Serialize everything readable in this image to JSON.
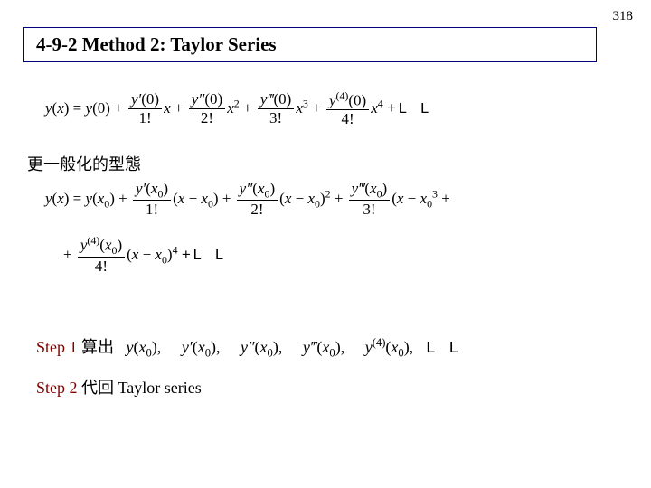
{
  "page_number": "318",
  "title": "4-9-2  Method 2: Taylor Series",
  "eq1": {
    "lhs_y": "y",
    "lhs_x": "x",
    "t0_y": "y",
    "t0_arg": "0",
    "terms": [
      {
        "deriv": "y′",
        "arg": "0",
        "fact": "1!",
        "xpow": "x"
      },
      {
        "deriv": "y″",
        "arg": "0",
        "fact": "2!",
        "xpow": "x",
        "exp": "2"
      },
      {
        "deriv": "y‴",
        "arg": "0",
        "fact": "3!",
        "xpow": "x",
        "exp": "3"
      },
      {
        "deriv": "y",
        "ord": "(4)",
        "arg": "0",
        "fact": "4!",
        "xpow": "x",
        "exp": "4"
      }
    ],
    "tail": "+L L"
  },
  "cjk_heading": "更一般化的型態",
  "eq2": {
    "lhs_y": "y",
    "lhs_x": "x",
    "t0_y": "y",
    "t0_argx": "x",
    "t0_sub": "0",
    "terms": [
      {
        "deriv": "y′",
        "argx": "x",
        "sub": "0",
        "fact": "1!",
        "bx": "x",
        "bsub": "0"
      },
      {
        "deriv": "y″",
        "argx": "x",
        "sub": "0",
        "fact": "2!",
        "bx": "x",
        "bsub": "0",
        "exp": "2"
      },
      {
        "deriv": "y‴",
        "argx": "x",
        "sub": "0",
        "fact": "3!",
        "bx": "x",
        "bsub": "0",
        "exp": "3"
      }
    ]
  },
  "eq3": {
    "term": {
      "deriv": "y",
      "ord": "(4)",
      "argx": "x",
      "sub": "0",
      "fact": "4!",
      "bx": "x",
      "bsub": "0",
      "exp": "4"
    },
    "tail": "+L L"
  },
  "step1": {
    "label": "Step 1",
    "cjk": "算出",
    "items": [
      {
        "fn": "y",
        "argx": "x",
        "sub": "0"
      },
      {
        "fn": "y′",
        "argx": "x",
        "sub": "0"
      },
      {
        "fn": "y″",
        "argx": "x",
        "sub": "0"
      },
      {
        "fn": "y‴",
        "argx": "x",
        "sub": "0"
      },
      {
        "fn": "y",
        "ord": "(4)",
        "argx": "x",
        "sub": "0"
      }
    ],
    "tail": "L L"
  },
  "step2": {
    "label": "Step 2",
    "cjk": "代回",
    "rest": "Taylor series"
  },
  "style": {
    "body_font": "Times New Roman",
    "cjk_font": "Kaiti/DFKai-SB",
    "body_fontsize_pt": 13,
    "title_fontsize_pt": 16,
    "step_label_color": "#800000",
    "title_border_color": "#000080",
    "background_color": "#ffffff",
    "text_color": "#000000"
  }
}
